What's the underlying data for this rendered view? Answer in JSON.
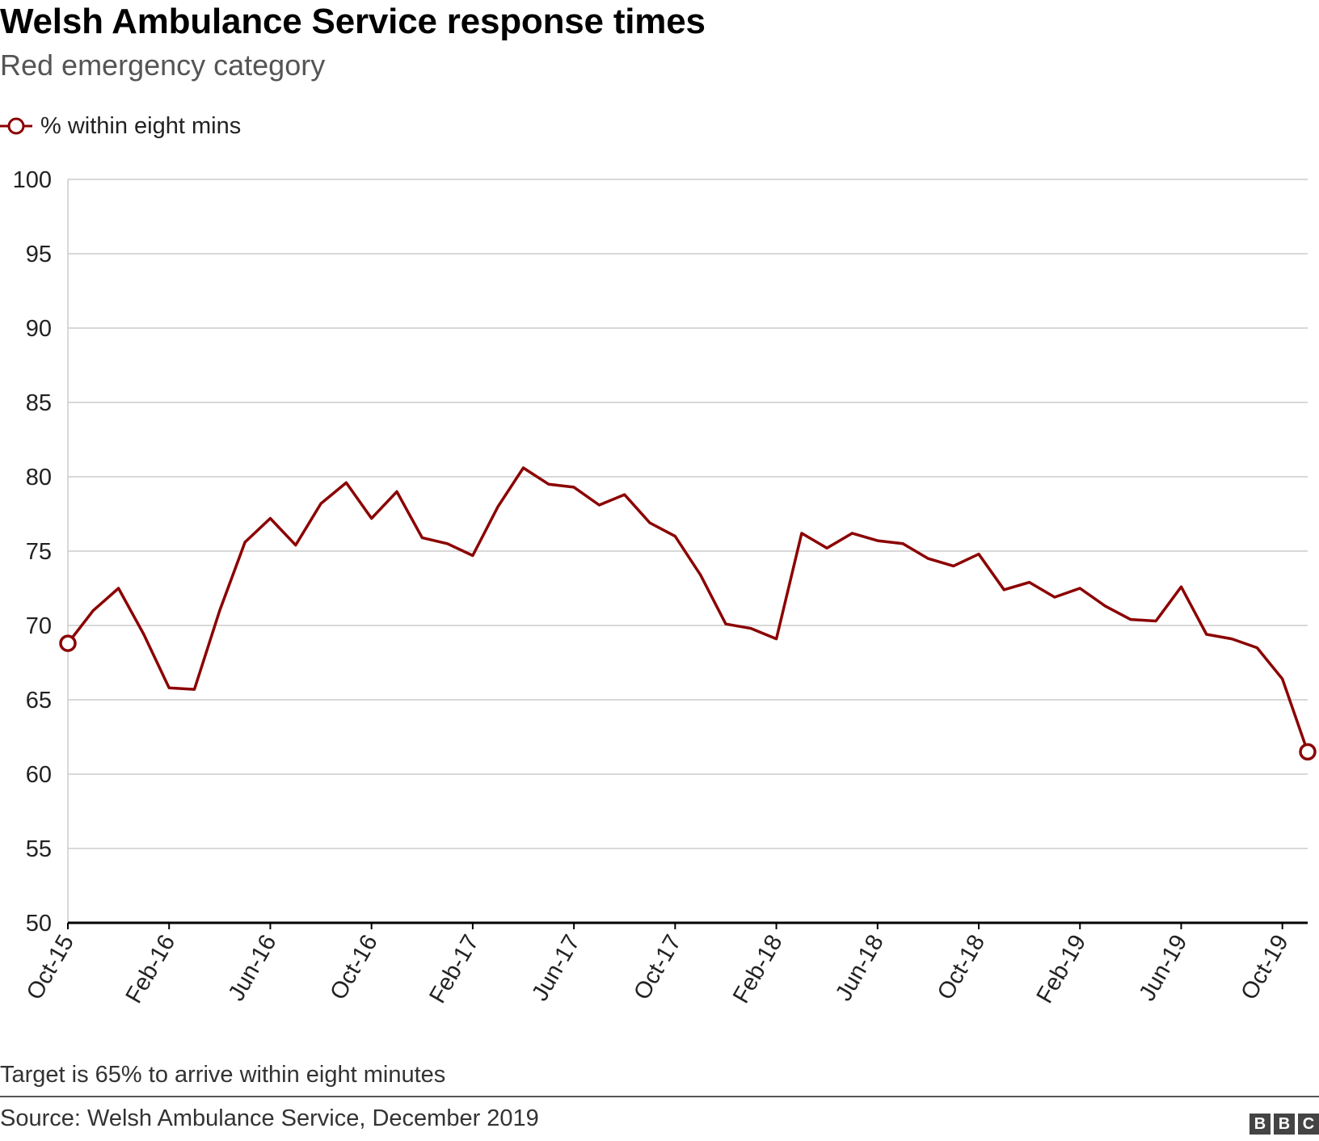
{
  "title": "Welsh Ambulance Service response times",
  "subtitle": "Red emergency category",
  "note": "Target is 65% to arrive within eight minutes",
  "source": "Source: Welsh Ambulance Service, December 2019",
  "logo": {
    "letters": [
      "B",
      "B",
      "C"
    ]
  },
  "colors": {
    "series": "#8b0000",
    "grid": "#cccccc",
    "axis": "#000000",
    "text": "#222222"
  },
  "chart_data": {
    "type": "line",
    "title": "Welsh Ambulance Service response times",
    "subtitle": "Red emergency category",
    "xlabel": "",
    "ylabel": "",
    "ylim": [
      50,
      100
    ],
    "yticks": [
      50,
      55,
      60,
      65,
      70,
      75,
      80,
      85,
      90,
      95,
      100
    ],
    "xticks": [
      "Oct-15",
      "Feb-16",
      "Jun-16",
      "Oct-16",
      "Feb-17",
      "Jun-17",
      "Oct-17",
      "Feb-18",
      "Jun-18",
      "Oct-18",
      "Feb-19",
      "Jun-19",
      "Oct-19"
    ],
    "grid": true,
    "legend_position": "top-left",
    "x": [
      "Oct-15",
      "Nov-15",
      "Dec-15",
      "Jan-16",
      "Feb-16",
      "Mar-16",
      "Apr-16",
      "May-16",
      "Jun-16",
      "Jul-16",
      "Aug-16",
      "Sep-16",
      "Oct-16",
      "Nov-16",
      "Dec-16",
      "Jan-17",
      "Feb-17",
      "Mar-17",
      "Apr-17",
      "May-17",
      "Jun-17",
      "Jul-17",
      "Aug-17",
      "Sep-17",
      "Oct-17",
      "Nov-17",
      "Dec-17",
      "Jan-18",
      "Feb-18",
      "Mar-18",
      "Apr-18",
      "May-18",
      "Jun-18",
      "Jul-18",
      "Aug-18",
      "Sep-18",
      "Oct-18",
      "Nov-18",
      "Dec-18",
      "Jan-19",
      "Feb-19",
      "Mar-19",
      "Apr-19",
      "May-19",
      "Jun-19",
      "Jul-19",
      "Aug-19",
      "Sep-19",
      "Oct-19",
      "Nov-19"
    ],
    "series": [
      {
        "name": "% within eight mins",
        "color": "#8b0000",
        "values": [
          68.8,
          71.0,
          72.5,
          69.4,
          65.8,
          65.7,
          71.0,
          75.6,
          77.2,
          75.4,
          78.2,
          79.6,
          77.2,
          79.0,
          75.9,
          75.5,
          74.7,
          78.0,
          80.6,
          79.5,
          79.3,
          78.1,
          78.8,
          76.9,
          76.0,
          73.4,
          70.1,
          69.8,
          69.1,
          76.2,
          75.2,
          76.2,
          75.7,
          75.5,
          74.5,
          74.0,
          74.8,
          72.4,
          72.9,
          71.9,
          72.5,
          71.3,
          70.4,
          70.3,
          72.6,
          69.4,
          69.1,
          68.5,
          66.4,
          61.5
        ],
        "markers": "first-last"
      }
    ]
  }
}
